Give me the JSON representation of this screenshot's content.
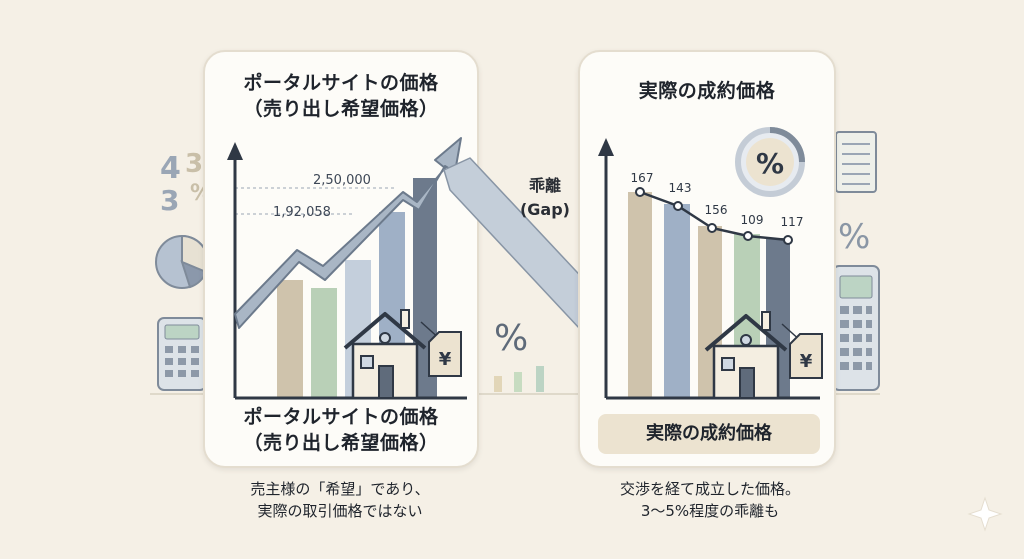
{
  "left_panel": {
    "title_line1": "ポータルサイトの価格",
    "title_line2": "（売り出し希望価格）",
    "bottom_line1": "ポータルサイトの価格",
    "bottom_line2": "（売り出し希望価格）",
    "value_high": "2,50,000",
    "value_low": "1,92,058",
    "tag_symbol": "¥"
  },
  "right_panel": {
    "title": "実際の成約価格",
    "bottom_label": "実際の成約価格",
    "point_labels": [
      "167",
      "143",
      "156",
      "109",
      "117"
    ],
    "badge_symbol": "%",
    "tag_symbol": "¥"
  },
  "gap": {
    "label_line1": "乖離",
    "label_line2": "(Gap)"
  },
  "captions": {
    "left_line1": "売主様の「希望」であり、",
    "left_line2": "実際の取引価格ではない",
    "right_line1": "交渉を経て成立した価格。",
    "right_line2": "3〜5%程度の乖離も"
  },
  "background": {
    "numbers": "4 3 3",
    "percent_symbol": "%"
  },
  "colors": {
    "background": "#f5f0e6",
    "bar_beige": "#cfc3ac",
    "bar_green": "#b9d0b7",
    "bar_blue": "#9fb0c6",
    "bar_slate": "#6d7a8c",
    "arrow": "#a9b6c5",
    "axis": "#2f3845"
  }
}
